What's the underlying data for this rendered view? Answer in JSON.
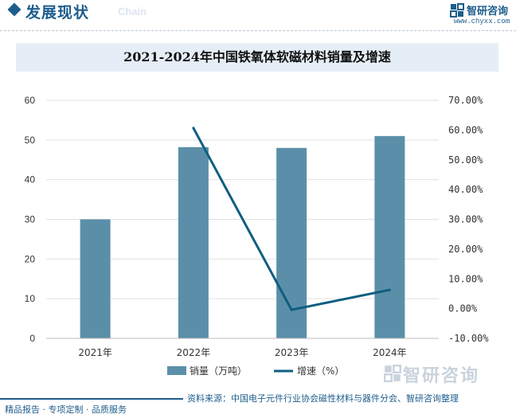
{
  "header": {
    "title": "发展现状",
    "subtitle": "Chain",
    "brand_name": "智研咨询",
    "brand_url": "www.chyxx.com"
  },
  "chart_data": {
    "type": "bar",
    "title": "2021-2024年中国铁氧体软磁材料销量及增速",
    "categories": [
      "2021年",
      "2022年",
      "2023年",
      "2024年"
    ],
    "series": [
      {
        "name": "销量（万吨）",
        "type": "bar",
        "axis": "left",
        "color": "#5b8fa9",
        "values": [
          30,
          48.2,
          48,
          51
        ]
      },
      {
        "name": "增速（%）",
        "type": "line",
        "axis": "right",
        "color": "#0e5e80",
        "values": [
          null,
          60.7,
          -0.4,
          6.3
        ]
      }
    ],
    "y_left": {
      "min": 0,
      "max": 60,
      "ticks": [
        "0",
        "10",
        "20",
        "30",
        "40",
        "50",
        "60"
      ]
    },
    "y_right": {
      "min": -10,
      "max": 70,
      "ticks": [
        "-10.00%",
        "0.00%",
        "10.00%",
        "20.00%",
        "30.00%",
        "40.00%",
        "50.00%",
        "60.00%",
        "70.00%"
      ]
    },
    "grid": true,
    "legend_position": "bottom"
  },
  "footer": {
    "left_text": "精品报告 · 专项定制 · 品质服务",
    "source": "资料来源：中国电子元件行业协会磁性材料与器件分会、智研咨询整理"
  },
  "watermark": {
    "text": "智研咨询"
  }
}
